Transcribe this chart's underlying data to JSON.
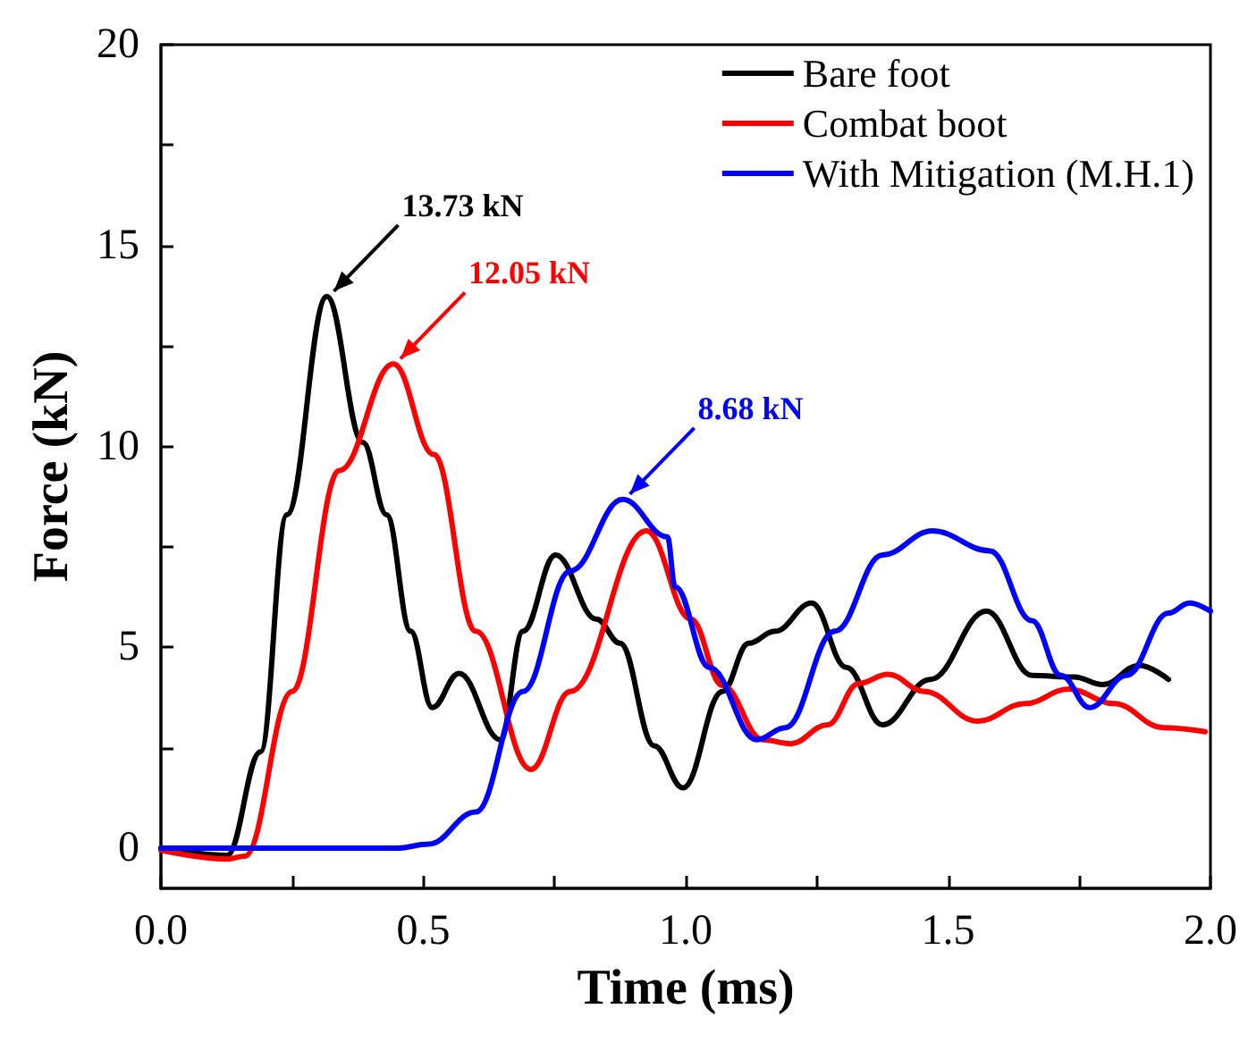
{
  "chart_data": {
    "type": "line",
    "xlabel": "Time (ms)",
    "ylabel": "Force (kN)",
    "xlim": [
      0,
      2
    ],
    "ylim": [
      -1,
      20
    ],
    "xticks": [
      {
        "value": 0,
        "label": "0.0"
      },
      {
        "value": 0.25,
        "label": null
      },
      {
        "value": 0.5,
        "label": "0.5"
      },
      {
        "value": 0.75,
        "label": null
      },
      {
        "value": 1,
        "label": "1.0"
      },
      {
        "value": 1.25,
        "label": null
      },
      {
        "value": 1.5,
        "label": "1.5"
      },
      {
        "value": 1.75,
        "label": null
      },
      {
        "value": 2,
        "label": "2.0"
      }
    ],
    "yticks": [
      0,
      {
        "value": 2.5,
        "label": null
      },
      5,
      {
        "value": 7.5,
        "label": null
      },
      10,
      {
        "value": 12.5,
        "label": null
      },
      15,
      {
        "value": 17.5,
        "label": null
      },
      20
    ],
    "grid": false,
    "legend": "top right",
    "marker": "none",
    "line_style": "solid",
    "series": [
      {
        "name": "Bare foot",
        "color": "#000000",
        "x": [
          0,
          0.126,
          0.19,
          0.24,
          0.316,
          0.385,
          0.43,
          0.476,
          0.517,
          0.568,
          0.647,
          0.69,
          0.752,
          0.83,
          0.875,
          0.94,
          0.995,
          1.07,
          1.12,
          1.17,
          1.24,
          1.306,
          1.375,
          1.466,
          1.573,
          1.66,
          1.74,
          1.795,
          1.864,
          1.92
        ],
        "values": [
          0,
          -0.18,
          2.4,
          8.3,
          13.73,
          10.1,
          8.3,
          5.4,
          3.5,
          4.35,
          2.7,
          5.4,
          7.3,
          5.7,
          5.1,
          2.55,
          1.5,
          3.9,
          5.1,
          5.4,
          6.1,
          4.5,
          3.07,
          4.2,
          5.9,
          4.3,
          4.26,
          4.07,
          4.55,
          4.2
        ]
      },
      {
        "name": "Combat boot",
        "color": "#ff0000",
        "x": [
          0,
          0.126,
          0.16,
          0.25,
          0.34,
          0.443,
          0.52,
          0.6,
          0.705,
          0.78,
          0.925,
          1.01,
          1.07,
          1.147,
          1.2,
          1.27,
          1.33,
          1.385,
          1.455,
          1.556,
          1.647,
          1.73,
          1.816,
          1.91,
          1.99
        ],
        "values": [
          -0.05,
          -0.27,
          -0.2,
          3.9,
          9.4,
          12.05,
          9.8,
          5.4,
          1.96,
          3.9,
          7.9,
          5.7,
          4.05,
          2.7,
          2.6,
          3.07,
          4.1,
          4.33,
          3.9,
          3.16,
          3.6,
          3.96,
          3.6,
          3.0,
          2.9
        ]
      },
      {
        "name": "With Mitigation (M.H.1)",
        "color": "#0000ff",
        "x": [
          0,
          0.45,
          0.51,
          0.6,
          0.69,
          0.78,
          0.88,
          0.965,
          0.98,
          1.045,
          1.135,
          1.19,
          1.284,
          1.375,
          1.47,
          1.58,
          1.66,
          1.715,
          1.77,
          1.84,
          1.92,
          1.96,
          2.0
        ],
        "values": [
          0,
          0,
          0.1,
          0.9,
          3.9,
          6.9,
          8.68,
          7.75,
          6.5,
          4.5,
          2.7,
          3.0,
          5.4,
          7.3,
          7.9,
          7.4,
          5.66,
          4.3,
          3.5,
          4.3,
          5.85,
          6.1,
          5.9
        ]
      }
    ],
    "annotations": [
      {
        "text": "13.73 kN",
        "x": 0.316,
        "y": 13.73
      },
      {
        "text": "12.05 kN",
        "x": 0.443,
        "y": 12.05
      },
      {
        "text": "8.68 kN",
        "x": 0.88,
        "y": 8.68
      }
    ]
  }
}
